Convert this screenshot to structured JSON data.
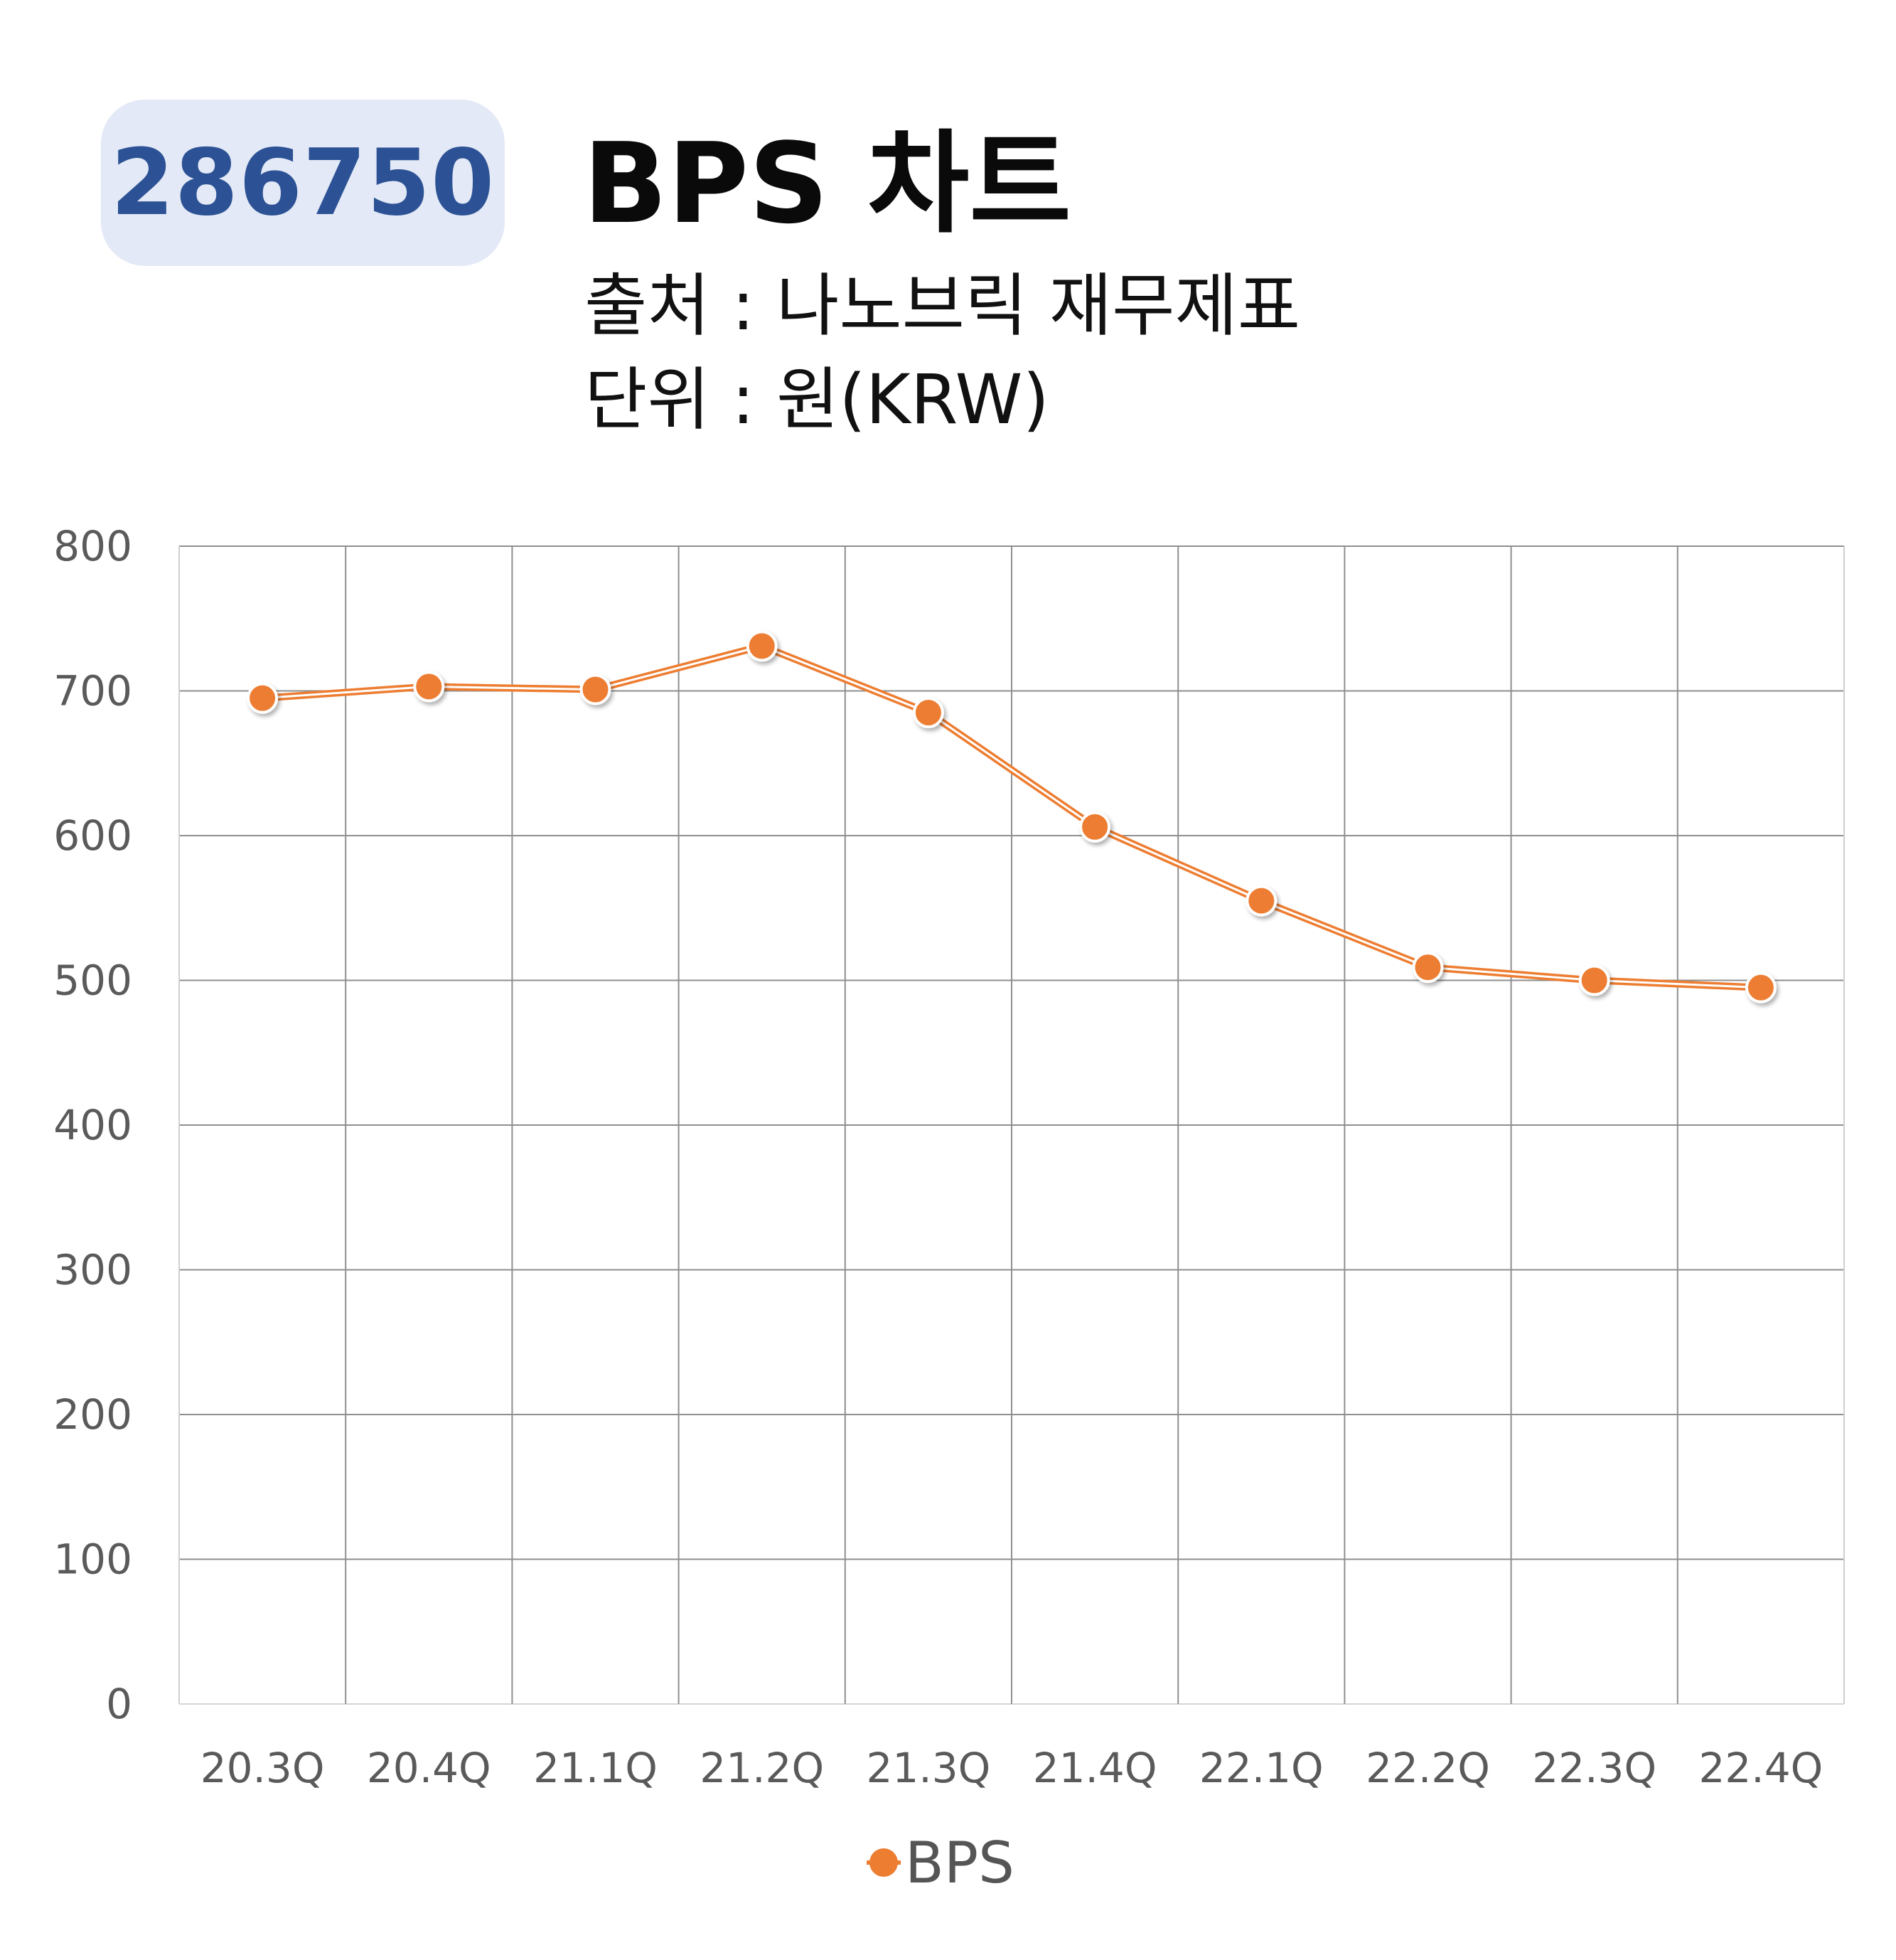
{
  "header": {
    "code": "286750",
    "title": "BPS 차트",
    "source": "출처 : 나노브릭 재무제표",
    "unit": "단위 : 원(KRW)"
  },
  "chart_data": {
    "type": "line",
    "categories": [
      "20.3Q",
      "20.4Q",
      "21.1Q",
      "21.2Q",
      "21.3Q",
      "21.4Q",
      "22.1Q",
      "22.2Q",
      "22.3Q",
      "22.4Q"
    ],
    "series": [
      {
        "name": "BPS",
        "values": [
          695,
          703,
          701,
          731,
          685,
          606,
          555,
          509,
          500,
          495
        ],
        "color": "#ed7d31"
      }
    ],
    "ylim": [
      0,
      800
    ],
    "yticks": [
      0,
      100,
      200,
      300,
      400,
      500,
      600,
      700,
      800
    ],
    "grid": true,
    "legend_position": "bottom-center"
  }
}
